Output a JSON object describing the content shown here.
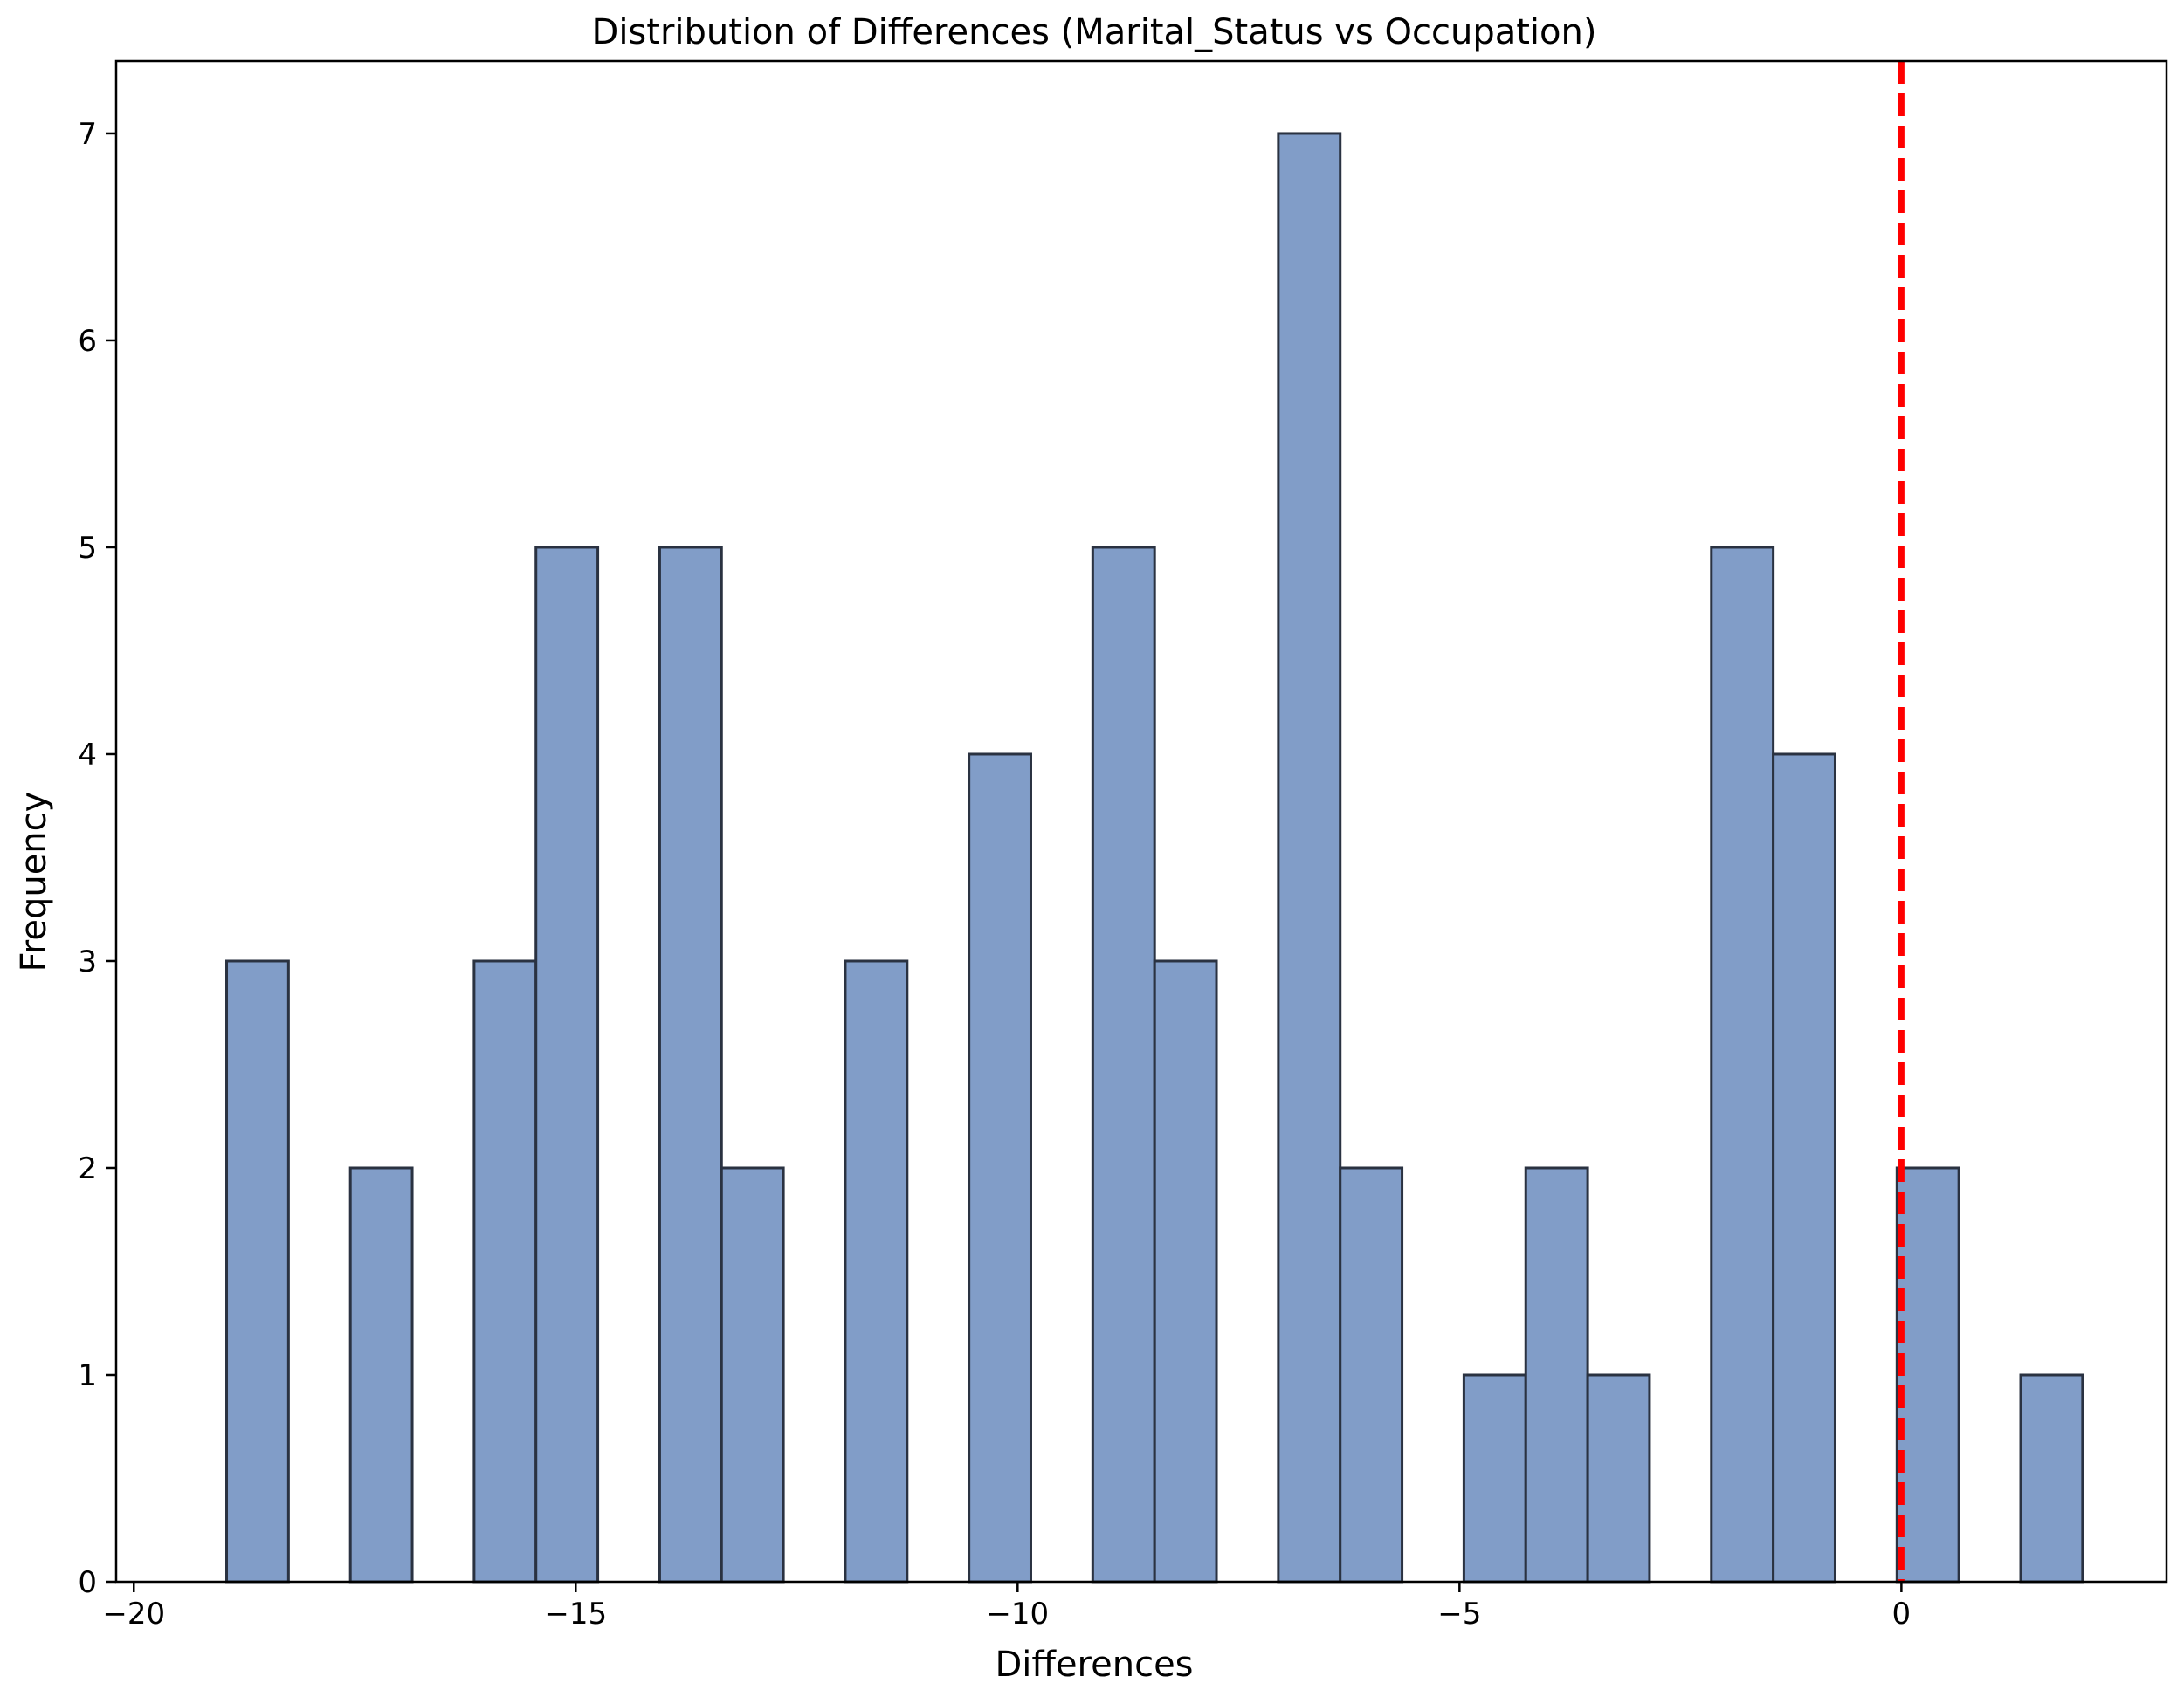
{
  "chart_data": {
    "type": "bar",
    "title": "Distribution of Differences (Marital_Status vs Occupation)",
    "xlabel": "Differences",
    "ylabel": "Frequency",
    "xlim": [
      -20.2,
      3.0
    ],
    "ylim": [
      0,
      7.35
    ],
    "x_ticks": [
      {
        "value": -20,
        "label": "−20"
      },
      {
        "value": -15,
        "label": "−15"
      },
      {
        "value": -10,
        "label": "−10"
      },
      {
        "value": -5,
        "label": "−5"
      },
      {
        "value": 0,
        "label": "0"
      }
    ],
    "y_ticks": [
      {
        "value": 0,
        "label": "0"
      },
      {
        "value": 1,
        "label": "1"
      },
      {
        "value": 2,
        "label": "2"
      },
      {
        "value": 3,
        "label": "3"
      },
      {
        "value": 4,
        "label": "4"
      },
      {
        "value": 5,
        "label": "5"
      },
      {
        "value": 6,
        "label": "6"
      },
      {
        "value": 7,
        "label": "7"
      }
    ],
    "bins": [
      {
        "x0": -18.95,
        "x1": -18.25,
        "count": 3
      },
      {
        "x0": -17.55,
        "x1": -16.85,
        "count": 2
      },
      {
        "x0": -16.15,
        "x1": -15.45,
        "count": 3
      },
      {
        "x0": -15.45,
        "x1": -14.75,
        "count": 5
      },
      {
        "x0": -14.05,
        "x1": -13.35,
        "count": 5
      },
      {
        "x0": -13.35,
        "x1": -12.65,
        "count": 2
      },
      {
        "x0": -11.95,
        "x1": -11.25,
        "count": 3
      },
      {
        "x0": -10.55,
        "x1": -9.85,
        "count": 4
      },
      {
        "x0": -9.15,
        "x1": -8.45,
        "count": 5
      },
      {
        "x0": -8.45,
        "x1": -7.75,
        "count": 3
      },
      {
        "x0": -7.05,
        "x1": -6.35,
        "count": 7
      },
      {
        "x0": -6.35,
        "x1": -5.65,
        "count": 2
      },
      {
        "x0": -4.95,
        "x1": -4.25,
        "count": 1
      },
      {
        "x0": -4.25,
        "x1": -3.55,
        "count": 2
      },
      {
        "x0": -3.55,
        "x1": -2.85,
        "count": 1
      },
      {
        "x0": -2.15,
        "x1": -1.45,
        "count": 5
      },
      {
        "x0": -1.45,
        "x1": -0.75,
        "count": 4
      },
      {
        "x0": -0.05,
        "x1": 0.65,
        "count": 2
      },
      {
        "x0": 1.35,
        "x1": 2.05,
        "count": 1
      }
    ],
    "reference_line": {
      "x": 0,
      "color": "#ff0000",
      "style": "dashed"
    },
    "bar_fill": "#819dc8",
    "bar_edge": "#2a3241",
    "grid": false
  }
}
